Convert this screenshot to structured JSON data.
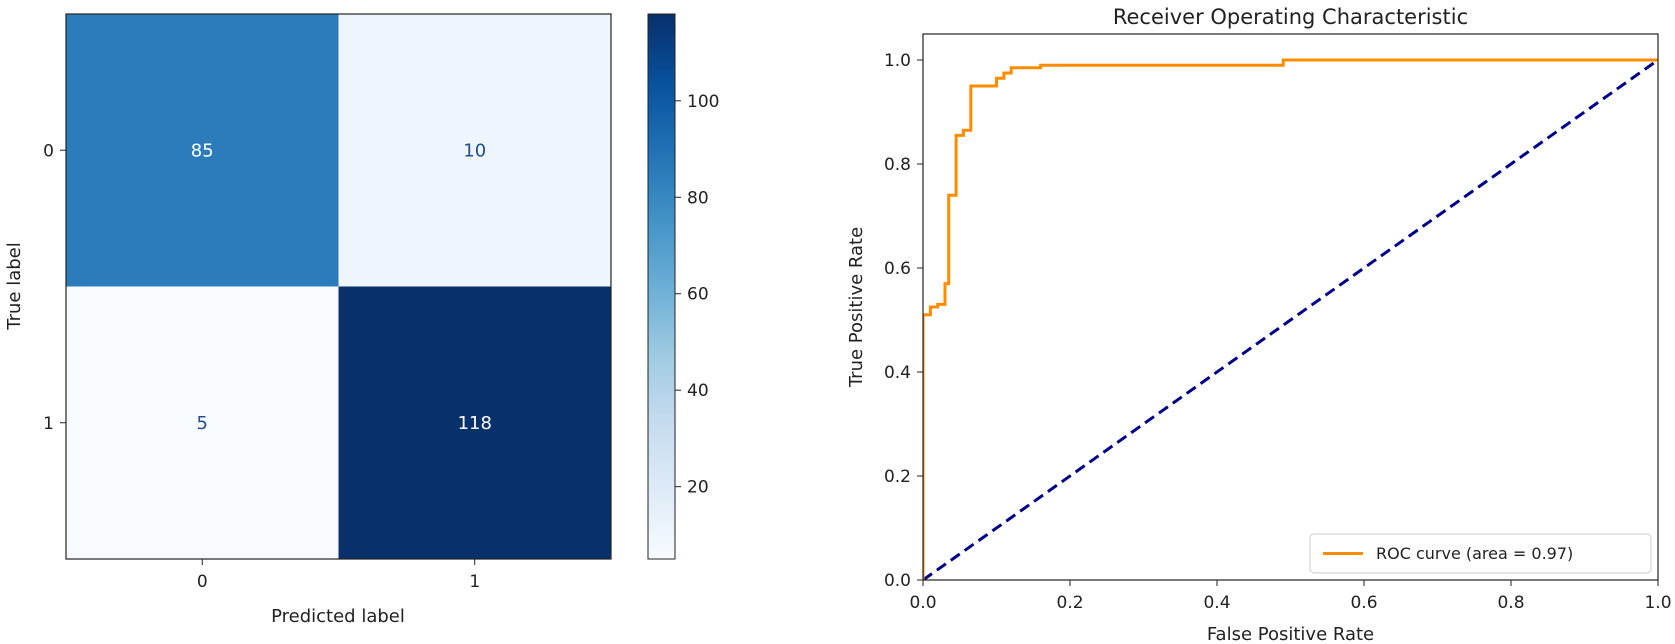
{
  "chart_data": [
    {
      "type": "heatmap",
      "title": "",
      "xlabel": "Predicted label",
      "ylabel": "True label",
      "x_categories": [
        "0",
        "1"
      ],
      "y_categories": [
        "0",
        "1"
      ],
      "values": [
        [
          85,
          10
        ],
        [
          5,
          118
        ]
      ],
      "colormap": "Blues",
      "colorbar": {
        "ticks": [
          20,
          40,
          60,
          80,
          100
        ],
        "range": [
          5,
          118
        ]
      },
      "colors": {
        "high": "#08306b",
        "low": "#f7fbff",
        "text_on_dark": "#ffffff",
        "text_on_light": "#1f4e8c"
      }
    },
    {
      "type": "line",
      "title": "Receiver Operating Characteristic",
      "xlabel": "False Positive Rate",
      "ylabel": "True Positive Rate",
      "xlim": [
        0.0,
        1.0
      ],
      "ylim": [
        0.0,
        1.05
      ],
      "xticks": [
        "0.0",
        "0.2",
        "0.4",
        "0.6",
        "0.8",
        "1.0"
      ],
      "yticks": [
        "0.0",
        "0.2",
        "0.4",
        "0.6",
        "0.8",
        "1.0"
      ],
      "legend": {
        "placement": "lower-right"
      },
      "series": [
        {
          "name": "ROC curve (area = 0.97)",
          "color": "#ff8c00",
          "style": "solid",
          "x": [
            0.0,
            0.0,
            0.0,
            0.01,
            0.01,
            0.02,
            0.02,
            0.03,
            0.03,
            0.035,
            0.035,
            0.045,
            0.045,
            0.055,
            0.055,
            0.065,
            0.065,
            0.1,
            0.1,
            0.11,
            0.11,
            0.12,
            0.12,
            0.16,
            0.16,
            0.49,
            0.49,
            1.0
          ],
          "y": [
            0.0,
            0.51,
            0.51,
            0.51,
            0.525,
            0.525,
            0.53,
            0.53,
            0.57,
            0.57,
            0.74,
            0.74,
            0.855,
            0.855,
            0.865,
            0.865,
            0.95,
            0.95,
            0.965,
            0.965,
            0.975,
            0.975,
            0.985,
            0.985,
            0.99,
            0.99,
            1.0,
            1.0
          ]
        },
        {
          "name": "",
          "color": "#00008b",
          "style": "dashed",
          "x": [
            0.0,
            1.0
          ],
          "y": [
            0.0,
            1.0
          ]
        }
      ]
    }
  ]
}
